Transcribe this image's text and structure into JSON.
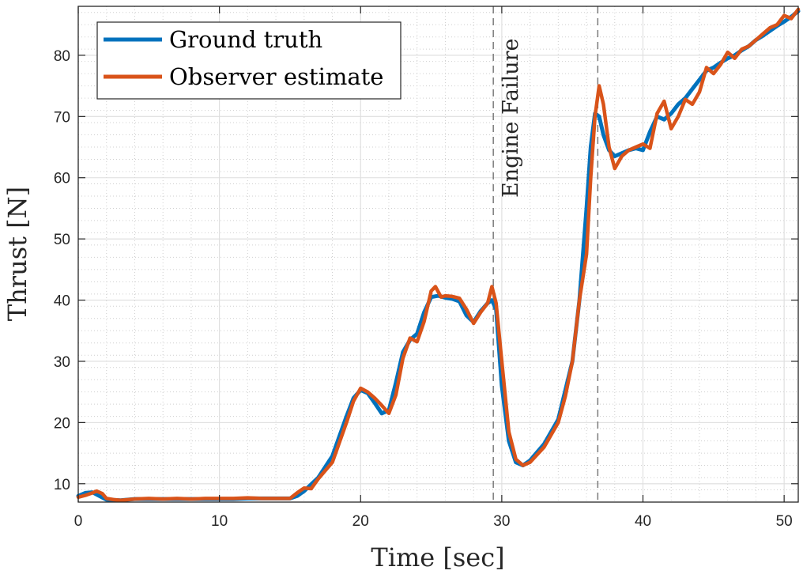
{
  "chart_data": {
    "type": "line",
    "xlabel": "Time [sec]",
    "ylabel": "Thrust [N]",
    "xlim": [
      0,
      51
    ],
    "ylim": [
      7,
      88
    ],
    "xticks": [
      0,
      10,
      20,
      30,
      40,
      50
    ],
    "yticks": [
      10,
      20,
      30,
      40,
      50,
      60,
      70,
      80
    ],
    "grid": true,
    "legend_position": "top-left",
    "colors": {
      "ground_truth": "#0072BD",
      "observer": "#D95319",
      "event_line": "#7a7a7a"
    },
    "events": [
      {
        "x": 29.4,
        "label": "Engine Failure"
      },
      {
        "x": 36.8,
        "label": ""
      }
    ],
    "series": [
      {
        "name": "Ground truth",
        "x": [
          0,
          0.5,
          1,
          1.5,
          2,
          3,
          4,
          5,
          6,
          7,
          8,
          9,
          10,
          11,
          12,
          13,
          14,
          15,
          15.5,
          16,
          17,
          18,
          19,
          19.5,
          20,
          20.5,
          21,
          21.5,
          22,
          22.5,
          23,
          23.5,
          24,
          24.5,
          25,
          25.5,
          26,
          26.5,
          27,
          27.5,
          28,
          28.5,
          29,
          29.3,
          29.6,
          30,
          30.5,
          31,
          31.5,
          32,
          33,
          34,
          35,
          35.5,
          36,
          36.3,
          36.6,
          36.9,
          37.2,
          37.6,
          38,
          38.5,
          39,
          39.5,
          40,
          40.5,
          41,
          41.5,
          42,
          42.5,
          43,
          43.5,
          44,
          44.5,
          45,
          45.5,
          46,
          46.5,
          47,
          47.5,
          48,
          48.5,
          49,
          49.5,
          50,
          50.5,
          51
        ],
        "values": [
          8.0,
          8.5,
          8.6,
          8.0,
          7.4,
          7.3,
          7.5,
          7.5,
          7.5,
          7.5,
          7.5,
          7.5,
          7.5,
          7.5,
          7.6,
          7.6,
          7.6,
          7.6,
          8.0,
          8.8,
          11.0,
          14.5,
          21.0,
          24.0,
          25.3,
          24.8,
          23.2,
          21.5,
          22.0,
          26.5,
          31.5,
          33.5,
          34.5,
          38.0,
          40.5,
          40.7,
          40.4,
          40.2,
          39.8,
          37.5,
          36.4,
          38.2,
          39.5,
          40.0,
          38.5,
          26.0,
          17.0,
          13.5,
          13.0,
          13.8,
          16.5,
          20.5,
          30.0,
          40.0,
          55.0,
          65.0,
          70.5,
          70.0,
          67.0,
          64.5,
          63.5,
          64.0,
          64.5,
          64.8,
          64.5,
          67.5,
          70.0,
          69.5,
          70.5,
          72.0,
          73.0,
          74.5,
          76.0,
          77.5,
          78.0,
          78.8,
          79.5,
          80.0,
          80.8,
          81.5,
          82.5,
          83.2,
          84.0,
          84.8,
          85.5,
          86.3,
          87.2
        ]
      },
      {
        "name": "Observer estimate",
        "x": [
          0,
          0.5,
          1,
          1.3,
          1.7,
          2,
          2.5,
          3,
          4,
          5,
          6,
          7,
          8,
          9,
          10,
          11,
          12,
          13,
          14,
          15,
          15.5,
          16,
          16.5,
          17,
          18,
          19,
          19.5,
          20,
          20.5,
          21,
          21.5,
          22,
          22.5,
          23,
          23.5,
          24,
          24.5,
          25,
          25.3,
          25.7,
          26,
          26.5,
          27,
          27.5,
          28,
          28.5,
          29,
          29.3,
          29.6,
          30,
          30.5,
          31,
          31.5,
          32,
          33,
          34,
          34.5,
          35,
          35.5,
          36,
          36.3,
          36.6,
          36.9,
          37.2,
          37.6,
          38,
          38.5,
          39,
          39.5,
          40,
          40.5,
          41,
          41.5,
          42,
          42.5,
          43,
          43.5,
          44,
          44.5,
          45,
          45.5,
          46,
          46.5,
          47,
          47.5,
          48,
          48.5,
          49,
          49.5,
          50,
          50.5,
          51
        ],
        "values": [
          7.8,
          8.1,
          8.5,
          8.8,
          8.4,
          7.6,
          7.4,
          7.3,
          7.5,
          7.6,
          7.5,
          7.6,
          7.5,
          7.6,
          7.6,
          7.6,
          7.7,
          7.6,
          7.6,
          7.6,
          8.5,
          9.3,
          9.2,
          10.8,
          13.5,
          20.0,
          23.5,
          25.6,
          25.0,
          24.0,
          22.8,
          21.5,
          24.5,
          30.5,
          33.8,
          33.2,
          36.5,
          41.5,
          42.2,
          40.5,
          40.7,
          40.6,
          40.3,
          38.5,
          36.2,
          38.0,
          39.5,
          42.2,
          39.5,
          30.0,
          18.5,
          14.0,
          13.0,
          13.5,
          16.0,
          20.0,
          24.3,
          30.0,
          40.0,
          47.5,
          60.0,
          70.0,
          75.0,
          72.0,
          65.0,
          61.5,
          63.5,
          64.5,
          65.0,
          65.5,
          64.8,
          70.5,
          72.5,
          68.0,
          70.0,
          72.8,
          72.0,
          74.0,
          78.0,
          77.0,
          78.5,
          80.5,
          79.5,
          81.0,
          81.5,
          82.5,
          83.5,
          84.5,
          85.0,
          86.5,
          86.0,
          87.5
        ]
      }
    ]
  }
}
